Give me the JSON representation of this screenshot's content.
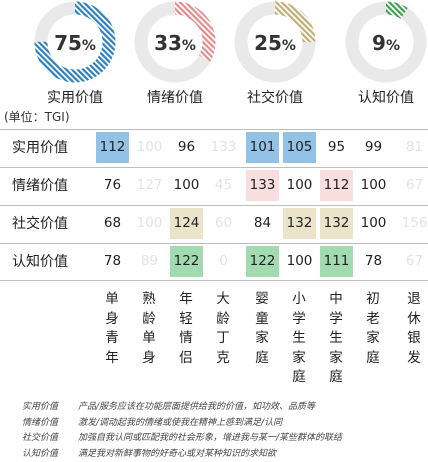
{
  "donuts": [
    {
      "label": "实用价值",
      "value": 75,
      "color": "#2e7fbe",
      "hatch": "#2e7fbe"
    },
    {
      "label": "情绪价值",
      "value": 33,
      "color": "#e48c8c",
      "hatch": "#e48c8c"
    },
    {
      "label": "社交价值",
      "value": 25,
      "color": "#c2ae74",
      "hatch": "#c2ae74"
    },
    {
      "label": "认知价值",
      "value": 9,
      "color": "#3aa24c",
      "hatch": "#3aa24c"
    }
  ],
  "percent_sign": "%",
  "unit_label": "(单位：TGI)",
  "chart_data": {
    "type": "table",
    "title": "",
    "rows": [
      "实用价值",
      "情绪价值",
      "社交价值",
      "认知价值"
    ],
    "columns": [
      "单身青年",
      "熟龄单身",
      "年轻情侣",
      "大龄丁克",
      "婴童家庭",
      "小学生家庭",
      "中学生家庭",
      "初老家庭",
      "退休银发"
    ],
    "values": [
      [
        112,
        100,
        96,
        133,
        101,
        105,
        95,
        99,
        81
      ],
      [
        76,
        127,
        100,
        45,
        133,
        100,
        112,
        100,
        67
      ],
      [
        68,
        100,
        124,
        60,
        84,
        132,
        132,
        100,
        156
      ],
      [
        78,
        89,
        122,
        0,
        122,
        100,
        111,
        78,
        67
      ]
    ],
    "faded_columns": [
      1,
      3,
      8
    ],
    "highlight_colors": {
      "实用价值": "#92c2e6",
      "情绪价值": "#f8dede",
      "社交价值": "#ece3cb",
      "认知价值": "#a3dbb1"
    },
    "highlights": [
      {
        "row": 0,
        "col": 0
      },
      {
        "row": 0,
        "col": 4
      },
      {
        "row": 0,
        "col": 5
      },
      {
        "row": 1,
        "col": 4
      },
      {
        "row": 1,
        "col": 6
      },
      {
        "row": 2,
        "col": 2
      },
      {
        "row": 2,
        "col": 5
      },
      {
        "row": 2,
        "col": 6
      },
      {
        "row": 3,
        "col": 2
      },
      {
        "row": 3,
        "col": 4
      },
      {
        "row": 3,
        "col": 6
      }
    ]
  },
  "notes": [
    {
      "term": "实用价值",
      "desc": "产品/服务应该在功能层面提供给我的价值，如功效、品质等"
    },
    {
      "term": "情绪价值",
      "desc": "激发/调动起我的情绪或使我在精神上感到满足/认同"
    },
    {
      "term": "社交价值",
      "desc": "加强自我认同或匹配我的社会形象，增进我与某一/某些群体的联结"
    },
    {
      "term": "认知价值",
      "desc": "满足我对新鲜事物的好奇心或对某种知识的求知欲"
    }
  ]
}
